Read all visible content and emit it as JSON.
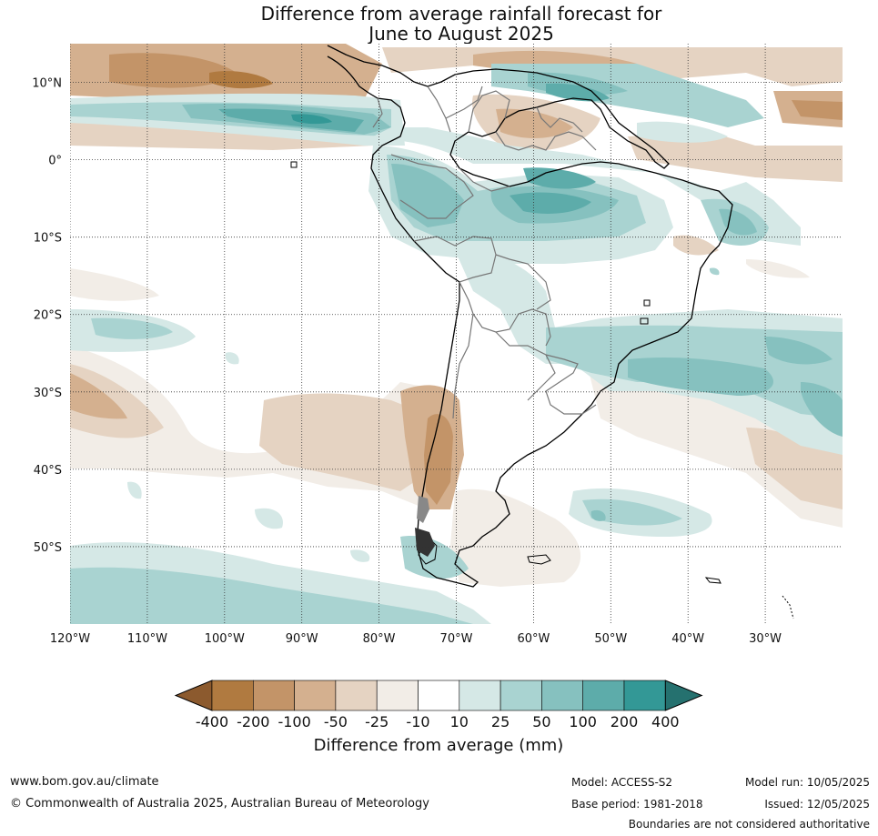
{
  "title_line1": "Difference from average rainfall forecast for",
  "title_line2": "June to August 2025",
  "lon_labels": [
    "120°W",
    "110°W",
    "100°W",
    "90°W",
    "80°W",
    "70°W",
    "60°W",
    "50°W",
    "40°W",
    "30°W"
  ],
  "lat_labels": [
    "10°N",
    "0°",
    "10°S",
    "20°S",
    "30°S",
    "40°S",
    "50°S"
  ],
  "colorbar": {
    "labels": [
      "-400",
      "-200",
      "-100",
      "-50",
      "-25",
      "-10",
      "10",
      "25",
      "50",
      "100",
      "200",
      "400"
    ],
    "colors": [
      "#8c5a2e",
      "#b07a40",
      "#c39468",
      "#d4b08f",
      "#e5d3c2",
      "#f2ede7",
      "#ffffff",
      "#d5e8e6",
      "#a9d3d1",
      "#86c1bf",
      "#5dacaa",
      "#339896",
      "#25716f"
    ],
    "title": "Difference from average (mm)"
  },
  "footer": {
    "website": "www.bom.gov.au/climate",
    "copyright": "© Commonwealth of Australia 2025, Australian Bureau of Meteorology",
    "model": "Model: ACCESS-S2",
    "base_period": "Base period: 1981-2018",
    "model_run": "Model run: 10/05/2025",
    "issued": "Issued: 12/05/2025",
    "disclaimer": "Boundaries are not considered authoritative"
  },
  "chart_data": {
    "type": "heatmap",
    "region": "South America",
    "variable": "Difference from average rainfall",
    "units": "mm",
    "period": "June to August 2025",
    "lon_range": [
      -120,
      -20
    ],
    "lat_range": [
      -60,
      15
    ],
    "contour_levels": [
      -400,
      -200,
      -100,
      -50,
      -25,
      -10,
      10,
      25,
      50,
      100,
      200,
      400
    ]
  }
}
